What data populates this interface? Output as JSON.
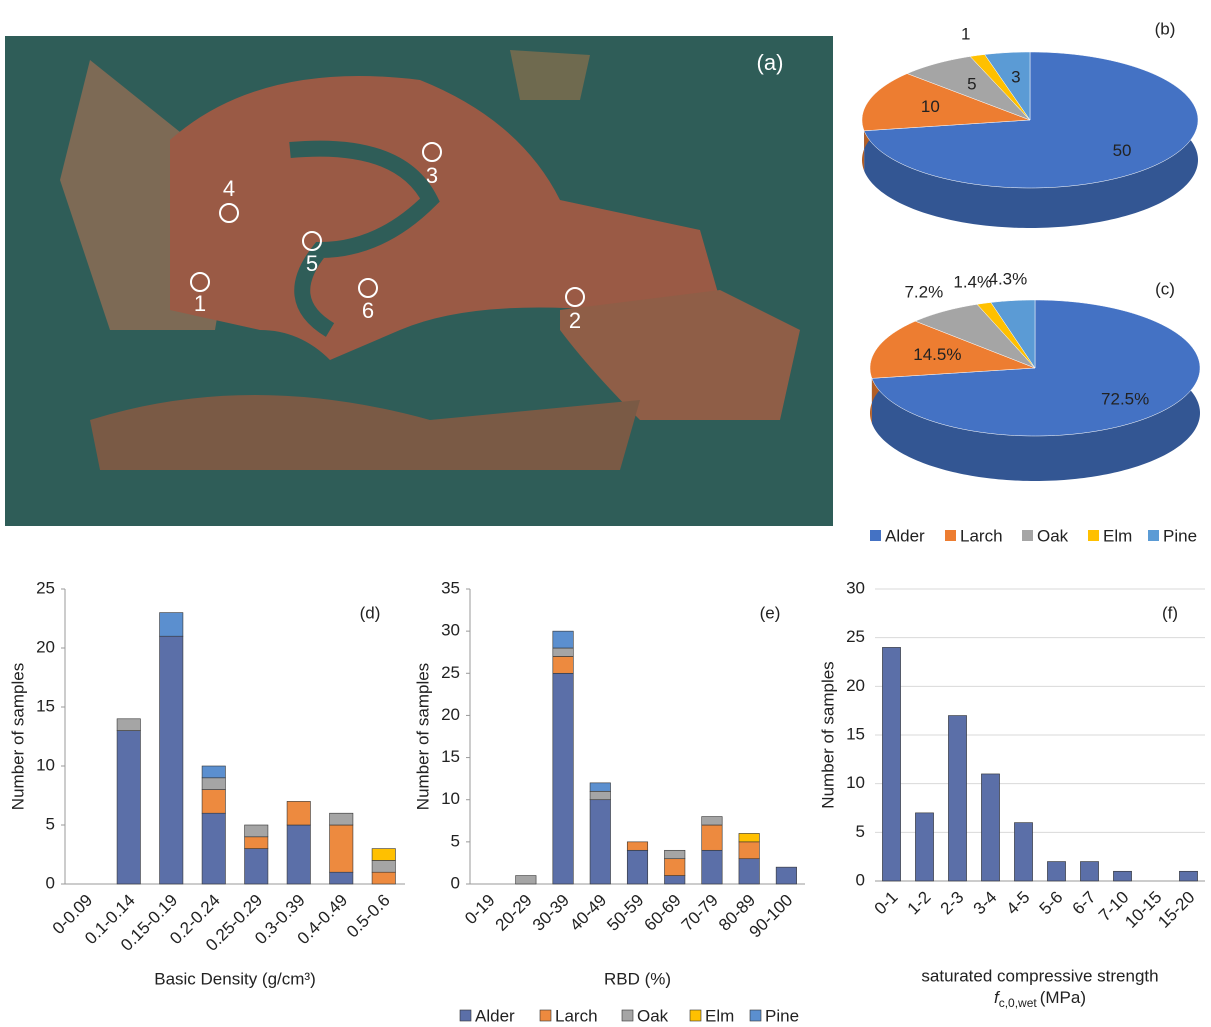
{
  "chart_data": [
    {
      "type": "map",
      "panel": "(a)",
      "sites": [
        "1",
        "2",
        "3",
        "4",
        "5",
        "6"
      ]
    },
    {
      "type": "pie",
      "categories": [
        "Alder",
        "Larch",
        "Oak",
        "Elm",
        "Pine"
      ],
      "colors": [
        "#4472c4",
        "#ed7d31",
        "#a5a5a5",
        "#ffc000",
        "#5b9bd5"
      ],
      "series": [
        {
          "name": "(b)",
          "values": [
            50,
            10,
            5,
            1,
            3
          ]
        },
        {
          "name": "(c)",
          "values": [
            72.5,
            14.5,
            7.2,
            1.4,
            4.3
          ],
          "value_labels": [
            "72.5%",
            "14.5%",
            "7.2%",
            "1.4%",
            "4.3%"
          ]
        }
      ]
    },
    {
      "type": "bar",
      "stacked": true,
      "panel": "(d)",
      "ylabel": "Number of samples",
      "xlabel": "Basic Density (g/cm³)",
      "categories": [
        "0-0.09",
        "0.1-0.14",
        "0.15-0.19",
        "0.2-0.24",
        "0.25-0.29",
        "0.3-0.39",
        "0.4-0.49",
        "0.5-0.6"
      ],
      "series": [
        {
          "color": "#5b6fa8",
          "values": [
            0,
            13,
            21,
            6,
            3,
            5,
            1,
            0
          ]
        },
        {
          "color": "#ed8a3f",
          "values": [
            0,
            0,
            0,
            2,
            1,
            2,
            4,
            1
          ]
        },
        {
          "color": "#a5a5a5",
          "values": [
            0,
            1,
            0,
            1,
            1,
            0,
            1,
            1
          ]
        },
        {
          "color": "#ffc000",
          "values": [
            0,
            0,
            0,
            0,
            0,
            0,
            0,
            1
          ]
        },
        {
          "color": "#5b8fcf",
          "values": [
            0,
            0,
            2,
            1,
            0,
            0,
            0,
            0
          ]
        }
      ],
      "ylim": [
        0,
        25
      ],
      "yticks": [
        0,
        5,
        10,
        15,
        20,
        25
      ],
      "grid": false
    },
    {
      "type": "bar",
      "stacked": true,
      "panel": "(e)",
      "ylabel": "Number of samples",
      "xlabel": "RBD (%)",
      "categories": [
        "0-19",
        "20-29",
        "30-39",
        "40-49",
        "50-59",
        "60-69",
        "70-79",
        "80-89",
        "90-100"
      ],
      "series": [
        {
          "name": "Alder",
          "color": "#5b6fa8",
          "values": [
            0,
            0,
            25,
            10,
            4,
            1,
            4,
            3,
            2
          ]
        },
        {
          "name": "Larch",
          "color": "#ed8a3f",
          "values": [
            0,
            0,
            2,
            0,
            1,
            2,
            3,
            2,
            0
          ]
        },
        {
          "name": "Oak",
          "color": "#a5a5a5",
          "values": [
            0,
            1,
            1,
            1,
            0,
            1,
            1,
            0,
            0
          ]
        },
        {
          "name": "Elm",
          "color": "#ffc000",
          "values": [
            0,
            0,
            0,
            0,
            0,
            0,
            0,
            1,
            0
          ]
        },
        {
          "name": "Pine",
          "color": "#5b8fcf",
          "values": [
            0,
            0,
            2,
            1,
            0,
            0,
            0,
            0,
            0
          ]
        }
      ],
      "ylim": [
        0,
        35
      ],
      "yticks": [
        0,
        5,
        10,
        15,
        20,
        25,
        30,
        35
      ],
      "grid": false
    },
    {
      "type": "bar",
      "panel": "(f)",
      "ylabel": "Number of samples",
      "xlabel": "saturated compressive strength",
      "xlabel_symbol": "f",
      "xlabel_subscript": "c,0,wet",
      "xlabel_unit": "(MPa)",
      "categories": [
        "0-1",
        "1-2",
        "2-3",
        "3-4",
        "4-5",
        "5-6",
        "6-7",
        "7-10",
        "10-15",
        "15-20"
      ],
      "color": "#5b6fa8",
      "values": [
        24,
        7,
        17,
        11,
        6,
        2,
        2,
        1,
        0,
        1
      ],
      "ylim": [
        0,
        30
      ],
      "yticks": [
        0,
        5,
        10,
        15,
        20,
        25,
        30
      ],
      "grid": true
    }
  ]
}
